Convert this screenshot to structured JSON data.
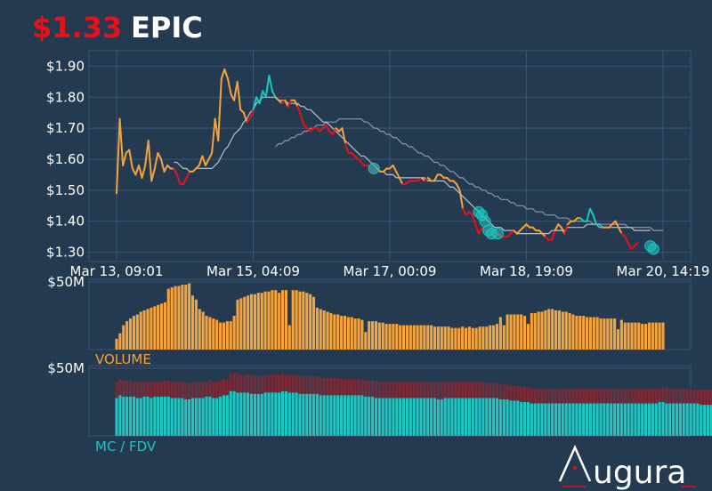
{
  "header": {
    "price": "$1.33",
    "ticker": "EPIC"
  },
  "brand": {
    "name": "ugura"
  },
  "colors": {
    "background": "#243a50",
    "grid": "#3a5472",
    "price_up": "#f6a33a",
    "price_down": "#e8101a",
    "price_peak": "#19c8c4",
    "ma_short": "#b9c3cf",
    "ma_long": "#8a98a8",
    "volume": "#f6a33a",
    "mc": "#19c8c4",
    "fdv": "#7a2a36"
  },
  "chart_data": [
    {
      "type": "line",
      "panel": "price",
      "x_tick_labels": [
        "Mar 13, 09:01",
        "Mar 15, 04:09",
        "Mar 17, 00:09",
        "Mar 18, 19:09",
        "Mar 20, 14:19"
      ],
      "x_tick_positions": [
        0,
        43,
        86,
        129,
        172
      ],
      "y_tick_labels": [
        "$1.90",
        "$1.80",
        "$1.70",
        "$1.60",
        "$1.50",
        "$1.40",
        "$1.30"
      ],
      "y_ticks": [
        1.9,
        1.8,
        1.7,
        1.6,
        1.5,
        1.4,
        1.3
      ],
      "ylim": [
        1.27,
        1.95
      ],
      "xlim": [
        0,
        172
      ],
      "series": [
        {
          "values": [
            1.49,
            1.73,
            1.58,
            1.62,
            1.63,
            1.57,
            1.55,
            1.58,
            1.54,
            1.58,
            1.66,
            1.53,
            1.57,
            1.62,
            1.6,
            1.56,
            1.58,
            1.57,
            1.57,
            1.55,
            1.52,
            1.52,
            1.54,
            1.56,
            1.56,
            1.57,
            1.58,
            1.61,
            1.58,
            1.6,
            1.62,
            1.73,
            1.66,
            1.86,
            1.89,
            1.86,
            1.81,
            1.79,
            1.85,
            1.76,
            1.75,
            1.72,
            1.73,
            1.76,
            1.8,
            1.78,
            1.82,
            1.8,
            1.87,
            1.82,
            1.8,
            1.79,
            1.78,
            1.79,
            1.77,
            1.79,
            1.79,
            1.77,
            1.74,
            1.71,
            1.7,
            1.69,
            1.7,
            1.7,
            1.69,
            1.7,
            1.71,
            1.69,
            1.68,
            1.7,
            1.69,
            1.7,
            1.65,
            1.62,
            1.62,
            1.61,
            1.6,
            1.59,
            1.58,
            1.58,
            1.57,
            1.56,
            1.57,
            1.56,
            1.56,
            1.57,
            1.57,
            1.58,
            1.56,
            1.54,
            1.52,
            1.52,
            1.53,
            1.53,
            1.53,
            1.53,
            1.54,
            1.53,
            1.54,
            1.53,
            1.53,
            1.55,
            1.55,
            1.54,
            1.54,
            1.53,
            1.53,
            1.52,
            1.5,
            1.44,
            1.42,
            1.43,
            1.42,
            1.39,
            1.36,
            1.38,
            1.37,
            1.36,
            1.36,
            1.35,
            1.36,
            1.35,
            1.35,
            1.35,
            1.36,
            1.37,
            1.36,
            1.37,
            1.38,
            1.39,
            1.38,
            1.38,
            1.37,
            1.37,
            1.36,
            1.35,
            1.34,
            1.34,
            1.37,
            1.39,
            1.38,
            1.36,
            1.39,
            1.4,
            1.4,
            1.41,
            1.41,
            1.4,
            1.4,
            1.44,
            1.42,
            1.39,
            1.39,
            1.38,
            1.38,
            1.38,
            1.39,
            1.4,
            1.38,
            1.36,
            1.35,
            1.33,
            1.31,
            1.32,
            1.33
          ]
        },
        {
          "values": [
            null,
            null,
            null,
            null,
            null,
            null,
            null,
            null,
            null,
            null,
            null,
            null,
            null,
            null,
            null,
            null,
            null,
            null,
            1.59,
            1.59,
            1.58,
            1.57,
            1.57,
            1.56,
            1.56,
            1.57,
            1.57,
            1.57,
            1.57,
            1.57,
            1.57,
            1.58,
            1.59,
            1.61,
            1.63,
            1.64,
            1.66,
            1.68,
            1.69,
            1.7,
            1.72,
            1.73,
            1.75,
            1.76,
            1.78,
            1.79,
            1.8,
            1.8,
            1.8,
            1.8,
            1.8,
            1.79,
            1.79,
            1.79,
            1.78,
            1.78,
            1.78,
            1.78,
            1.77,
            1.77,
            1.76,
            1.76,
            1.75,
            1.74,
            1.73,
            1.72,
            1.72,
            1.71,
            1.7,
            1.69,
            1.68,
            1.67,
            1.66,
            1.65,
            1.64,
            1.63,
            1.62,
            1.61,
            1.61,
            1.6,
            1.59,
            1.58,
            1.57,
            1.56,
            1.56,
            1.55,
            1.55,
            1.55,
            1.54,
            1.54,
            1.54,
            1.54,
            1.54,
            1.54,
            1.54,
            1.54,
            1.54,
            1.54,
            1.53,
            1.53,
            1.53,
            1.53,
            1.53,
            1.53,
            1.52,
            1.51,
            1.51,
            1.5,
            1.49,
            1.48,
            1.47,
            1.46,
            1.45,
            1.44,
            1.43,
            1.42,
            1.41,
            1.4,
            1.39,
            1.38,
            1.38,
            1.38,
            1.37,
            1.37,
            1.37,
            1.37,
            1.36,
            1.36,
            1.36,
            1.36,
            1.36,
            1.36,
            1.36,
            1.36,
            1.36,
            1.36,
            1.36,
            1.37,
            1.37,
            1.37,
            1.37,
            1.37,
            1.38,
            1.38,
            1.38,
            1.38,
            1.38,
            1.38,
            1.39,
            1.39,
            1.39,
            1.39,
            1.38,
            1.38,
            1.38,
            1.38,
            1.38,
            1.38,
            1.38,
            1.38,
            1.38,
            1.38,
            1.38,
            1.37,
            1.37,
            1.37,
            1.37,
            1.37,
            1.37
          ]
        },
        {
          "values": [
            null,
            null,
            null,
            null,
            null,
            null,
            null,
            null,
            null,
            null,
            null,
            null,
            null,
            null,
            null,
            null,
            null,
            null,
            null,
            null,
            null,
            null,
            null,
            null,
            null,
            null,
            null,
            null,
            null,
            null,
            null,
            null,
            null,
            null,
            null,
            null,
            null,
            null,
            null,
            null,
            null,
            null,
            null,
            null,
            null,
            null,
            null,
            null,
            null,
            null,
            1.64,
            1.65,
            1.65,
            1.66,
            1.66,
            1.67,
            1.67,
            1.68,
            1.68,
            1.69,
            1.69,
            1.7,
            1.7,
            1.71,
            1.71,
            1.71,
            1.72,
            1.72,
            1.72,
            1.72,
            1.73,
            1.73,
            1.73,
            1.73,
            1.73,
            1.73,
            1.73,
            1.73,
            1.72,
            1.72,
            1.71,
            1.7,
            1.7,
            1.69,
            1.69,
            1.68,
            1.68,
            1.67,
            1.67,
            1.66,
            1.65,
            1.65,
            1.64,
            1.64,
            1.63,
            1.62,
            1.62,
            1.61,
            1.61,
            1.6,
            1.59,
            1.59,
            1.58,
            1.58,
            1.57,
            1.56,
            1.56,
            1.55,
            1.54,
            1.54,
            1.53,
            1.52,
            1.52,
            1.51,
            1.51,
            1.5,
            1.5,
            1.49,
            1.49,
            1.48,
            1.48,
            1.47,
            1.47,
            1.47,
            1.46,
            1.46,
            1.45,
            1.45,
            1.45,
            1.44,
            1.44,
            1.44,
            1.43,
            1.43,
            1.43,
            1.42,
            1.42,
            1.42,
            1.42,
            1.41,
            1.41,
            1.41,
            1.41,
            1.4,
            1.4,
            1.4,
            1.4,
            1.4,
            1.4,
            1.4,
            1.39,
            1.39,
            1.39,
            1.39,
            1.39,
            1.39,
            1.39,
            1.39,
            1.39,
            1.39,
            1.39,
            1.38,
            1.38,
            1.38,
            1.38,
            1.38,
            1.38,
            1.38,
            1.38,
            1.37,
            1.37,
            1.37,
            1.37
          ]
        }
      ],
      "markers": [
        {
          "x": 81,
          "y": 1.57
        },
        {
          "x": 114,
          "y": 1.43
        },
        {
          "x": 115,
          "y": 1.42
        },
        {
          "x": 116,
          "y": 1.4
        },
        {
          "x": 117,
          "y": 1.37
        },
        {
          "x": 118,
          "y": 1.36
        },
        {
          "x": 120,
          "y": 1.36
        },
        {
          "x": 168,
          "y": 1.32
        },
        {
          "x": 169,
          "y": 1.31
        }
      ]
    },
    {
      "type": "bar",
      "panel": "volume",
      "title": "VOLUME",
      "y_tick_labels": [
        "$50M"
      ],
      "y_ticks": [
        50
      ],
      "ylim": [
        0,
        52
      ],
      "values": [
        8,
        12,
        18,
        21,
        23,
        25,
        26,
        28,
        29,
        30,
        31,
        32,
        33,
        34,
        35,
        45,
        46,
        47,
        47,
        48,
        48,
        49,
        40,
        37,
        30,
        28,
        25,
        24,
        23,
        22,
        20,
        20,
        21,
        21,
        25,
        37,
        38,
        39,
        40,
        41,
        41,
        42,
        42,
        43,
        43,
        44,
        44,
        42,
        44,
        44,
        18,
        44,
        44,
        43,
        43,
        42,
        41,
        39,
        31,
        30,
        29,
        28,
        27,
        26,
        26,
        25,
        25,
        24,
        24,
        23,
        23,
        22,
        13,
        21,
        21,
        21,
        20,
        20,
        19,
        19,
        19,
        19,
        18,
        18,
        18,
        18,
        18,
        18,
        18,
        18,
        18,
        18,
        17,
        17,
        17,
        17,
        17,
        16,
        16,
        16,
        17,
        16,
        17,
        16,
        16,
        17,
        17,
        17,
        18,
        18,
        19,
        24,
        18,
        26,
        26,
        26,
        26,
        26,
        25,
        19,
        27,
        27,
        28,
        28,
        29,
        30,
        30,
        29,
        29,
        28,
        28,
        27,
        26,
        25,
        25,
        25,
        24,
        24,
        24,
        24,
        23,
        23,
        23,
        23,
        23,
        15,
        22,
        20,
        20,
        20,
        20,
        20,
        19,
        19,
        20,
        20,
        20,
        20,
        20
      ]
    },
    {
      "type": "bar",
      "panel": "mc_fdv",
      "title": "MC / FDV",
      "y_tick_labels": [
        "$50M"
      ],
      "y_ticks": [
        50
      ],
      "ylim": [
        0,
        52
      ],
      "mc_values": [
        28,
        30,
        29,
        29,
        29,
        29,
        28,
        28,
        29,
        29,
        28,
        29,
        29,
        29,
        29,
        29,
        28,
        28,
        28,
        28,
        27,
        27,
        28,
        28,
        28,
        28,
        29,
        29,
        28,
        28,
        29,
        30,
        30,
        33,
        33,
        32,
        32,
        32,
        32,
        31,
        31,
        31,
        31,
        32,
        32,
        32,
        32,
        32,
        33,
        33,
        32,
        32,
        32,
        31,
        31,
        31,
        31,
        31,
        31,
        30,
        30,
        30,
        30,
        30,
        30,
        30,
        30,
        30,
        30,
        30,
        30,
        30,
        29,
        29,
        29,
        28,
        28,
        28,
        28,
        28,
        28,
        28,
        28,
        28,
        28,
        28,
        28,
        28,
        28,
        28,
        28,
        28,
        28,
        27,
        27,
        28,
        28,
        28,
        28,
        28,
        28,
        28,
        28,
        28,
        28,
        28,
        28,
        28,
        28,
        28,
        28,
        27,
        27,
        27,
        26,
        26,
        26,
        25,
        25,
        25,
        24,
        24,
        24,
        24,
        24,
        24,
        24,
        24,
        24,
        24,
        24,
        24,
        24,
        24,
        24,
        24,
        24,
        24,
        24,
        24,
        24,
        24,
        24,
        24,
        24,
        24,
        24,
        24,
        24,
        24,
        24,
        24,
        24,
        24,
        24,
        24,
        24,
        25,
        25,
        24,
        24,
        24,
        24,
        24,
        24,
        24,
        24,
        24,
        24,
        23,
        23,
        23,
        23
      ],
      "fdv_values": [
        40,
        42,
        41,
        41,
        41,
        40,
        40,
        40,
        40,
        40,
        40,
        40,
        40,
        40,
        41,
        41,
        40,
        40,
        40,
        40,
        39,
        39,
        40,
        40,
        40,
        40,
        40,
        41,
        40,
        40,
        41,
        42,
        41,
        46,
        47,
        46,
        45,
        45,
        46,
        45,
        44,
        44,
        44,
        45,
        45,
        45,
        46,
        45,
        46,
        45,
        45,
        45,
        45,
        44,
        44,
        44,
        44,
        44,
        44,
        43,
        43,
        43,
        43,
        43,
        43,
        42,
        42,
        42,
        42,
        42,
        42,
        42,
        41,
        41,
        41,
        41,
        40,
        40,
        40,
        40,
        40,
        40,
        40,
        40,
        40,
        40,
        40,
        40,
        40,
        40,
        40,
        40,
        40,
        40,
        40,
        40,
        40,
        40,
        40,
        40,
        40,
        40,
        40,
        40,
        40,
        40,
        40,
        39,
        39,
        39,
        39,
        38,
        38,
        38,
        37,
        37,
        37,
        36,
        36,
        36,
        35,
        35,
        35,
        35,
        35,
        35,
        35,
        35,
        35,
        35,
        35,
        35,
        35,
        35,
        35,
        35,
        35,
        35,
        35,
        35,
        35,
        35,
        35,
        35,
        35,
        35,
        35,
        35,
        35,
        35,
        35,
        35,
        35,
        35,
        35,
        35,
        35,
        35,
        36,
        36,
        35,
        35,
        35,
        35,
        35,
        35,
        34,
        34,
        34,
        34,
        34,
        34,
        34,
        34
      ]
    }
  ]
}
